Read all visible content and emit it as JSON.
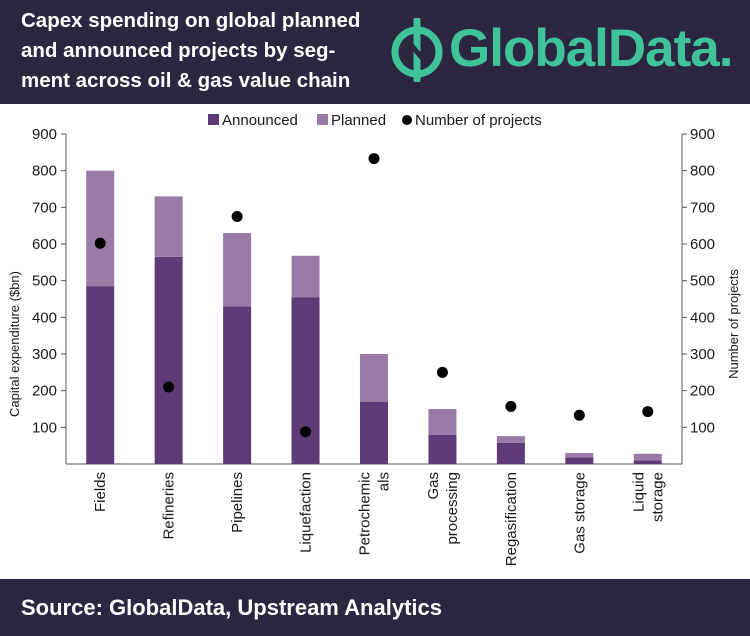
{
  "header": {
    "title": "Capex spending on global planned\nand announced projects by seg-\nment across oil & gas value chain",
    "logo_text": "GlobalData.",
    "logo_icon": "globaldata-logo-icon"
  },
  "footer": {
    "source": "Source: GlobalData, Upstream Analytics"
  },
  "colors": {
    "background_dark": "#2d2640",
    "brand_green": "#3ec39b",
    "announced": "#5e3a78",
    "planned": "#9a7aa6",
    "dots": "#000000"
  },
  "chart_data": {
    "type": "bar",
    "stacked": true,
    "categories": [
      "Fields",
      "Refineries",
      "Pipelines",
      "Liquefaction",
      "Petrochemic als",
      "Gas processing",
      "Regasification",
      "Gas storage",
      "Liquid storage"
    ],
    "category_lines": [
      [
        "Fields"
      ],
      [
        "Refineries"
      ],
      [
        "Pipelines"
      ],
      [
        "Liquefaction"
      ],
      [
        "Petrochemic",
        "als"
      ],
      [
        "Gas",
        "processing"
      ],
      [
        "Regasification"
      ],
      [
        "Gas storage"
      ],
      [
        "Liquid",
        "storage"
      ]
    ],
    "series": [
      {
        "name": "Announced",
        "kind": "bar",
        "axis": "left",
        "values": [
          485,
          565,
          430,
          455,
          170,
          80,
          58,
          18,
          10
        ]
      },
      {
        "name": "Planned",
        "kind": "bar",
        "axis": "left",
        "values": [
          315,
          165,
          200,
          113,
          130,
          70,
          18,
          12,
          18
        ]
      },
      {
        "name": "Number of projects",
        "kind": "scatter",
        "axis": "right",
        "values": [
          602,
          210,
          675,
          88,
          833,
          250,
          157,
          133,
          143
        ]
      }
    ],
    "ylabel": "Capital expenditure ($bn)",
    "y2label": "Number of projects",
    "ylim": [
      0,
      900
    ],
    "y2lim": [
      0,
      900
    ],
    "yticks": [
      100,
      200,
      300,
      400,
      500,
      600,
      700,
      800,
      900
    ],
    "y2ticks": [
      100,
      200,
      300,
      400,
      500,
      600,
      700,
      800,
      900
    ],
    "legend": {
      "position": "top",
      "labels": [
        "Announced",
        "Planned",
        "Number of projects"
      ]
    },
    "grid": false
  }
}
